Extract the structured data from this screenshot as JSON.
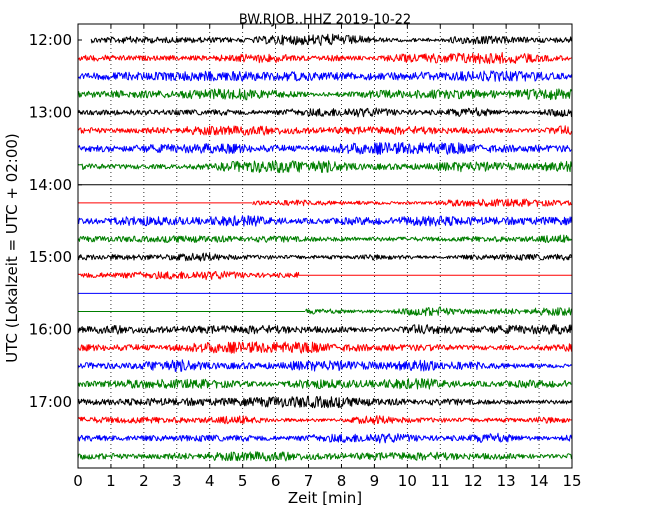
{
  "chart_data": {
    "type": "line",
    "title": "BW.RJOB..HHZ 2019-10-22",
    "xlabel": "Zeit  [min]",
    "ylabel": "UTC (Lokalzeit = UTC + 02:00)",
    "xlim": [
      0,
      15
    ],
    "x_ticks": [
      "0",
      "1",
      "2",
      "3",
      "4",
      "5",
      "6",
      "7",
      "8",
      "9",
      "10",
      "11",
      "12",
      "13",
      "14",
      "15"
    ],
    "y_tick_labels": [
      "12:00",
      "13:00",
      "14:00",
      "15:00",
      "16:00",
      "17:00"
    ],
    "grid": "vertical dotted",
    "trace_colors": [
      "#000000",
      "#ff0000",
      "#0000ff",
      "#007f00"
    ],
    "series": [
      {
        "row_start": "12:00",
        "data_start_min": 0.4,
        "data_end_min": 15,
        "amplitude": 0.9,
        "flat": false
      },
      {
        "row_start": "12:15",
        "data_start_min": 0,
        "data_end_min": 15,
        "amplitude": 0.9,
        "flat": false
      },
      {
        "row_start": "12:30",
        "data_start_min": 0,
        "data_end_min": 15,
        "amplitude": 0.85,
        "flat": false
      },
      {
        "row_start": "12:45",
        "data_start_min": 0,
        "data_end_min": 15,
        "amplitude": 0.9,
        "flat": false
      },
      {
        "row_start": "13:00",
        "data_start_min": 0,
        "data_end_min": 15,
        "amplitude": 0.85,
        "flat": false
      },
      {
        "row_start": "13:15",
        "data_start_min": 0,
        "data_end_min": 15,
        "amplitude": 0.9,
        "flat": false
      },
      {
        "row_start": "13:30",
        "data_start_min": 0,
        "data_end_min": 15,
        "amplitude": 0.95,
        "flat": false
      },
      {
        "row_start": "13:45",
        "data_start_min": 0,
        "data_end_min": 15,
        "amplitude": 0.9,
        "flat": false
      },
      {
        "row_start": "14:00",
        "data_start_min": 15,
        "data_end_min": 15,
        "amplitude": 0,
        "flat": true
      },
      {
        "row_start": "14:15",
        "data_start_min": 5.3,
        "data_end_min": 15,
        "amplitude": 0.75,
        "flat": false
      },
      {
        "row_start": "14:30",
        "data_start_min": 0,
        "data_end_min": 15,
        "amplitude": 0.9,
        "flat": false
      },
      {
        "row_start": "14:45",
        "data_start_min": 0,
        "data_end_min": 15,
        "amplitude": 0.9,
        "flat": false
      },
      {
        "row_start": "15:00",
        "data_start_min": 0,
        "data_end_min": 15,
        "amplitude": 0.85,
        "flat": false
      },
      {
        "row_start": "15:15",
        "data_start_min": 0,
        "data_end_min": 6.7,
        "amplitude": 0.8,
        "flat": false
      },
      {
        "row_start": "15:30",
        "data_start_min": 15,
        "data_end_min": 15,
        "amplitude": 0,
        "flat": true
      },
      {
        "row_start": "15:45",
        "data_start_min": 6.9,
        "data_end_min": 15,
        "amplitude": 0.8,
        "flat": false
      },
      {
        "row_start": "16:00",
        "data_start_min": 0,
        "data_end_min": 15,
        "amplitude": 0.95,
        "flat": false
      },
      {
        "row_start": "16:15",
        "data_start_min": 0,
        "data_end_min": 15,
        "amplitude": 0.9,
        "flat": false
      },
      {
        "row_start": "16:30",
        "data_start_min": 0,
        "data_end_min": 15,
        "amplitude": 0.95,
        "flat": false
      },
      {
        "row_start": "16:45",
        "data_start_min": 0,
        "data_end_min": 15,
        "amplitude": 0.9,
        "flat": false
      },
      {
        "row_start": "17:00",
        "data_start_min": 0,
        "data_end_min": 15,
        "amplitude": 0.9,
        "flat": false
      },
      {
        "row_start": "17:15",
        "data_start_min": 0,
        "data_end_min": 15,
        "amplitude": 0.95,
        "flat": false
      },
      {
        "row_start": "17:30",
        "data_start_min": 0,
        "data_end_min": 15,
        "amplitude": 0.9,
        "flat": false
      },
      {
        "row_start": "17:45",
        "data_start_min": 0,
        "data_end_min": 15,
        "amplitude": 0.9,
        "flat": false
      }
    ]
  }
}
